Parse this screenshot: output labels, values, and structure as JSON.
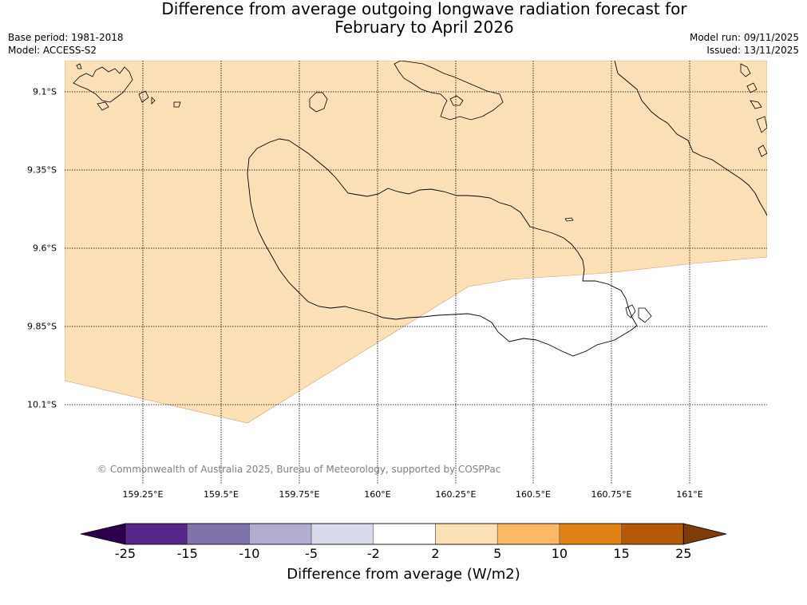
{
  "title": {
    "line1": "Difference from average outgoing longwave radiation forecast for",
    "line2": "February to April 2026"
  },
  "meta": {
    "base_period": "Base period: 1981-2018",
    "model": "Model: ACCESS-S2",
    "model_run": "Model run: 09/11/2025",
    "issued": "Issued: 13/11/2025"
  },
  "axes": {
    "lat_labels": [
      "9.1°S",
      "9.35°S",
      "9.6°S",
      "9.85°S",
      "10.1°S"
    ],
    "lon_labels": [
      "159.25°E",
      "159.5°E",
      "159.75°E",
      "160°E",
      "160.25°E",
      "160.5°E",
      "160.75°E",
      "161°E"
    ]
  },
  "copyright": "© Commonwealth of Australia 2025, Bureau of Meteorology, supported by COSPPac",
  "colorbar": {
    "title": "Difference from average (W/m2)",
    "ticks": [
      "-25",
      "-15",
      "-10",
      "-5",
      "-2",
      "2",
      "5",
      "10",
      "15",
      "25"
    ],
    "colors": {
      "below_min": "#2d004b",
      "bins": [
        "#542788",
        "#8073ac",
        "#b2abd2",
        "#d8daeb",
        "#ffffff",
        "#fee0b6",
        "#fdb863",
        "#e08214",
        "#b35806"
      ],
      "above_max": "#7f3b08"
    }
  },
  "chart_data": {
    "type": "map",
    "region": "Guadalcanal, Solomon Islands",
    "lat_range": [
      "9.0°S",
      "10.3°S"
    ],
    "lon_range": [
      "159.0°E",
      "161.1°E"
    ],
    "shaded_category": "2 to 5",
    "shaded_color": "#fee0b6"
  }
}
